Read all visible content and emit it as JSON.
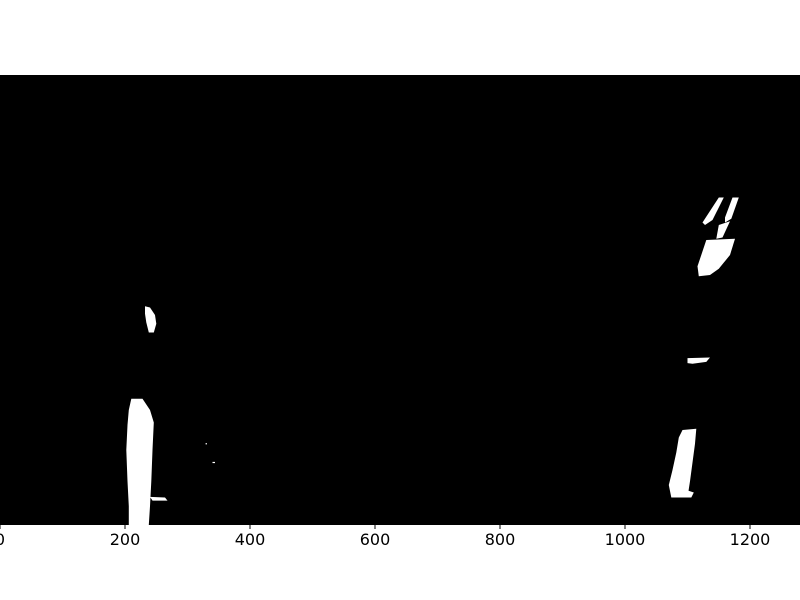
{
  "chart_data": {
    "type": "image",
    "description_title": "",
    "xlabel": "",
    "ylabel": "",
    "xlim": [
      0,
      1280
    ],
    "ylim": [
      720,
      0
    ],
    "x_ticks": [
      0,
      200,
      400,
      600,
      800,
      1000,
      1200
    ],
    "x_tick_labels": [
      "0",
      "200",
      "400",
      "600",
      "800",
      "1000",
      "1200"
    ],
    "y_ticks_visible": false,
    "colors": {
      "background": "#000000",
      "lane_pixels": "#ffffff",
      "figure_bg": "#ffffff"
    },
    "regions": [
      {
        "name": "left-lane-upper-segment",
        "points": [
          [
            232,
            370
          ],
          [
            240,
            372
          ],
          [
            248,
            384
          ],
          [
            250,
            398
          ],
          [
            246,
            412
          ],
          [
            238,
            412
          ],
          [
            234,
            396
          ],
          [
            232,
            382
          ]
        ]
      },
      {
        "name": "left-lane-lower-segment",
        "points": [
          [
            210,
            518
          ],
          [
            228,
            518
          ],
          [
            240,
            536
          ],
          [
            246,
            556
          ],
          [
            244,
            600
          ],
          [
            242,
            650
          ],
          [
            240,
            690
          ],
          [
            238,
            720
          ],
          [
            206,
            720
          ],
          [
            206,
            690
          ],
          [
            204,
            650
          ],
          [
            202,
            600
          ],
          [
            204,
            560
          ],
          [
            206,
            536
          ]
        ]
      },
      {
        "name": "left-lane-small-blob",
        "points": [
          [
            240,
            675
          ],
          [
            264,
            676
          ],
          [
            268,
            681
          ],
          [
            244,
            681
          ]
        ]
      },
      {
        "name": "noise-dot-a",
        "points": [
          [
            329,
            589
          ],
          [
            331,
            589
          ],
          [
            331,
            591
          ],
          [
            329,
            591
          ]
        ]
      },
      {
        "name": "noise-dot-b",
        "points": [
          [
            340,
            619
          ],
          [
            344,
            619
          ],
          [
            344,
            621
          ],
          [
            340,
            621
          ]
        ]
      },
      {
        "name": "right-lane-upper-dash-1",
        "points": [
          [
            1150,
            196
          ],
          [
            1158,
            196
          ],
          [
            1140,
            232
          ],
          [
            1128,
            240
          ],
          [
            1124,
            236
          ]
        ]
      },
      {
        "name": "right-lane-upper-dash-2",
        "points": [
          [
            1172,
            196
          ],
          [
            1182,
            196
          ],
          [
            1170,
            230
          ],
          [
            1160,
            236
          ],
          [
            1160,
            228
          ]
        ]
      },
      {
        "name": "right-lane-upper-dash-3",
        "points": [
          [
            1150,
            240
          ],
          [
            1168,
            234
          ],
          [
            1156,
            260
          ],
          [
            1146,
            262
          ]
        ]
      },
      {
        "name": "right-lane-upper-block",
        "points": [
          [
            1130,
            264
          ],
          [
            1176,
            262
          ],
          [
            1168,
            288
          ],
          [
            1150,
            310
          ],
          [
            1136,
            320
          ],
          [
            1118,
            322
          ],
          [
            1116,
            306
          ]
        ]
      },
      {
        "name": "right-lane-middle-dash",
        "points": [
          [
            1100,
            453
          ],
          [
            1136,
            452
          ],
          [
            1130,
            459
          ],
          [
            1108,
            462
          ],
          [
            1100,
            461
          ]
        ]
      },
      {
        "name": "right-lane-lower-segment",
        "points": [
          [
            1092,
            568
          ],
          [
            1114,
            566
          ],
          [
            1112,
            590
          ],
          [
            1108,
            620
          ],
          [
            1104,
            650
          ],
          [
            1100,
            676
          ],
          [
            1074,
            676
          ],
          [
            1070,
            656
          ],
          [
            1076,
            632
          ],
          [
            1082,
            604
          ],
          [
            1086,
            580
          ]
        ]
      },
      {
        "name": "right-lane-lower-notch",
        "points": [
          [
            1098,
            664
          ],
          [
            1110,
            668
          ],
          [
            1106,
            676
          ],
          [
            1100,
            676
          ]
        ]
      }
    ]
  }
}
